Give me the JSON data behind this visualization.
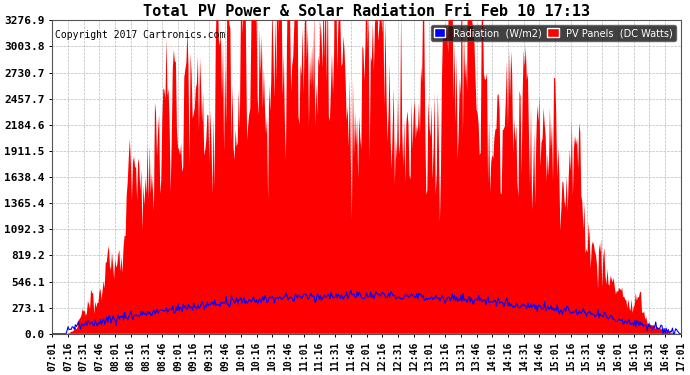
{
  "title": "Total PV Power & Solar Radiation Fri Feb 10 17:13",
  "copyright": "Copyright 2017 Cartronics.com",
  "y_ticks": [
    0.0,
    273.1,
    546.1,
    819.2,
    1092.3,
    1365.4,
    1638.4,
    1911.5,
    2184.6,
    2457.7,
    2730.7,
    3003.8,
    3276.9
  ],
  "x_tick_labels": [
    "07:01",
    "07:16",
    "07:31",
    "07:46",
    "08:01",
    "08:16",
    "08:31",
    "08:46",
    "09:01",
    "09:16",
    "09:31",
    "09:46",
    "10:01",
    "10:16",
    "10:31",
    "10:46",
    "11:01",
    "11:16",
    "11:31",
    "11:46",
    "12:01",
    "12:16",
    "12:31",
    "12:46",
    "13:01",
    "13:16",
    "13:31",
    "13:46",
    "14:01",
    "14:16",
    "14:31",
    "14:46",
    "15:01",
    "15:16",
    "15:31",
    "15:46",
    "16:01",
    "16:16",
    "16:31",
    "16:46",
    "17:01"
  ],
  "background_color": "#ffffff",
  "plot_bg_color": "#ffffff",
  "grid_color": "#aaaaaa",
  "pv_color": "#ff0000",
  "radiation_color": "#0000ff",
  "legend_radiation_bg": "#0000ff",
  "legend_pv_bg": "#ff0000",
  "title_fontsize": 11,
  "copyright_fontsize": 7,
  "tick_fontsize": 7,
  "ytick_fontsize": 8
}
